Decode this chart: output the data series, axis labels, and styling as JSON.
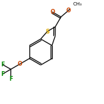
{
  "background_color": "#ffffff",
  "bond_color": "#000000",
  "atom_colors": {
    "S": "#ddaa00",
    "O": "#cc4400",
    "F": "#008800",
    "C": "#000000"
  },
  "figsize": [
    1.52,
    1.52
  ],
  "dpi": 100,
  "lw": 0.9,
  "fs_heavy": 5.8,
  "fs_methyl": 5.2
}
